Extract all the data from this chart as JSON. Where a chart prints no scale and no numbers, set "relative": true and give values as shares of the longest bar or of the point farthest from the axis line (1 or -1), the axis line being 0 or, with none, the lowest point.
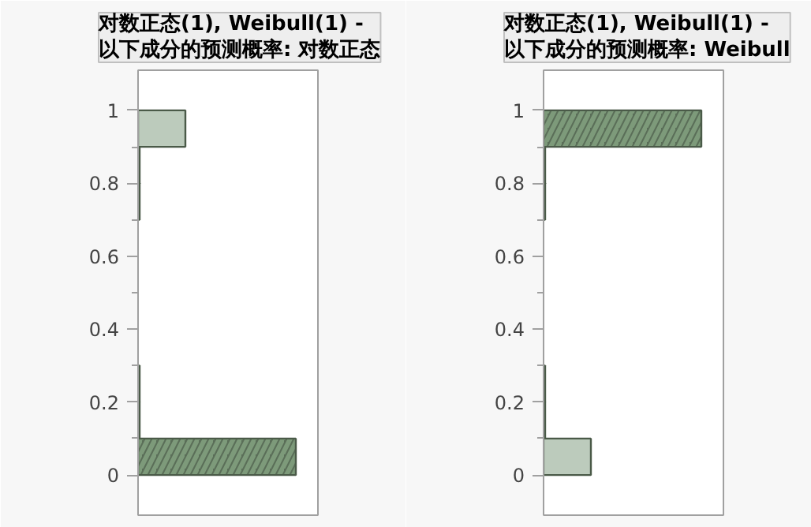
{
  "chart_data": [
    {
      "type": "bar",
      "orientation": "horizontal",
      "stacked": true,
      "relative": true,
      "title": "对数正态(1), Weibull(1) -\n以下成分的预测概率: 对数正态",
      "x": [
        0.05,
        0.15,
        0.25,
        0.35,
        0.45,
        0.55,
        0.65,
        0.75,
        0.85,
        0.95
      ],
      "series": [
        {
          "color": "#5a6e58",
          "values": [
            1,
            0,
            0,
            0,
            0,
            0,
            0,
            0,
            0,
            0
          ]
        },
        {
          "color": "#bccbbc",
          "values": [
            0,
            0.01,
            0.01,
            0,
            0,
            0,
            0,
            0.01,
            0.01,
            0.3
          ]
        }
      ],
      "ylim": [
        -0.11,
        1.11
      ],
      "yticks": [
        0,
        {
          "value": 0.1,
          "label": null
        },
        0.2,
        {
          "value": 0.3,
          "label": null
        },
        0.4,
        {
          "value": 0.5,
          "label": null
        },
        0.6,
        {
          "value": 0.7,
          "label": null
        },
        0.8,
        {
          "value": 0.9,
          "label": null
        },
        1
      ],
      "grid": false,
      "tick_labels": "y"
    },
    {
      "type": "bar",
      "orientation": "horizontal",
      "stacked": true,
      "relative": true,
      "title": "对数正态(1), Weibull(1) -\n以下成分的预测概率: Weibull",
      "x": [
        0.05,
        0.15,
        0.25,
        0.35,
        0.45,
        0.55,
        0.65,
        0.75,
        0.85,
        0.95
      ],
      "series": [
        {
          "color": "#5a6e58",
          "values": [
            0,
            0,
            0,
            0,
            0,
            0,
            0,
            0,
            0,
            1
          ]
        },
        {
          "color": "#bccbbc",
          "values": [
            0.3,
            0.01,
            0.01,
            0,
            0,
            0,
            0,
            0.01,
            0.01,
            0
          ]
        }
      ],
      "ylim": [
        -0.11,
        1.11
      ],
      "yticks": [
        0,
        {
          "value": 0.1,
          "label": null
        },
        0.2,
        {
          "value": 0.3,
          "label": null
        },
        0.4,
        {
          "value": 0.5,
          "label": null
        },
        0.6,
        {
          "value": 0.7,
          "label": null
        },
        0.8,
        {
          "value": 0.9,
          "label": null
        },
        1
      ],
      "grid": false,
      "tick_labels": "y"
    }
  ]
}
